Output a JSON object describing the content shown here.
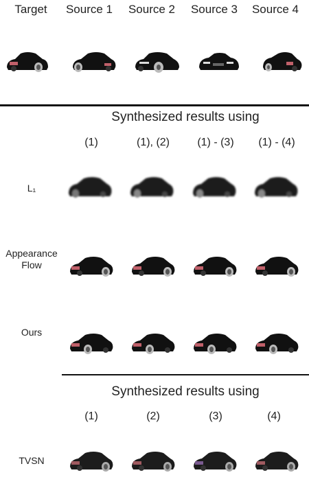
{
  "header": {
    "columns": [
      "Target",
      "Source 1",
      "Source 2",
      "Source 3",
      "Source 4"
    ]
  },
  "section1": {
    "title": "Synthesized results using",
    "subheads": [
      "(1)",
      "(1), (2)",
      "(1) - (3)",
      "(1) - (4)"
    ],
    "rows": [
      {
        "label": "L₁"
      },
      {
        "label": "Appearance Flow"
      },
      {
        "label": "Ours"
      }
    ]
  },
  "section2": {
    "title": "Synthesized results using",
    "subheads": [
      "(1)",
      "(2)",
      "(3)",
      "(4)"
    ],
    "rows": [
      {
        "label": "TVSN"
      }
    ]
  },
  "colors": {
    "car_body": "#111111",
    "blurry_car": "#1a1a1a",
    "divider": "#111111"
  }
}
